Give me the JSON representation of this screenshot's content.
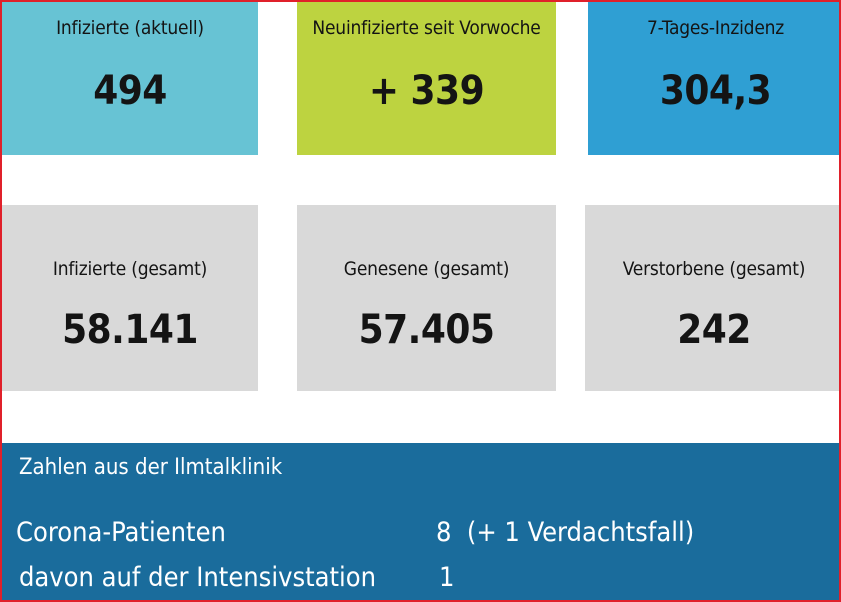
{
  "tiles_top": [
    {
      "label": "Infizierte (aktuell)",
      "value": "494",
      "color": "#67c3d4"
    },
    {
      "label": "Neuinfizierte seit Vorwoche",
      "value": "+ 339",
      "color": "#bdd340"
    },
    {
      "label": "7-Tages-Inzidenz",
      "value": "304,3",
      "color": "#2f9fd3"
    }
  ],
  "tiles_bottom": [
    {
      "label": "Infizierte (gesamt)",
      "value": "58.141",
      "color": "#d9d9d9"
    },
    {
      "label": "Genesene (gesamt)",
      "value": "57.405",
      "color": "#d9d9d9"
    },
    {
      "label": "Verstorbene (gesamt)",
      "value": "242",
      "color": "#d9d9d9"
    }
  ],
  "klinik": {
    "heading": "Zahlen aus der Ilmtalklinik",
    "color": "#1a6c9c",
    "rows": [
      {
        "name": "Corona-Patienten",
        "value": "8  (+ 1 Verdachtsfall)"
      },
      {
        "name": "davon auf der Intensivstation",
        "value": "1"
      }
    ]
  },
  "frame_color": "#e0202a"
}
